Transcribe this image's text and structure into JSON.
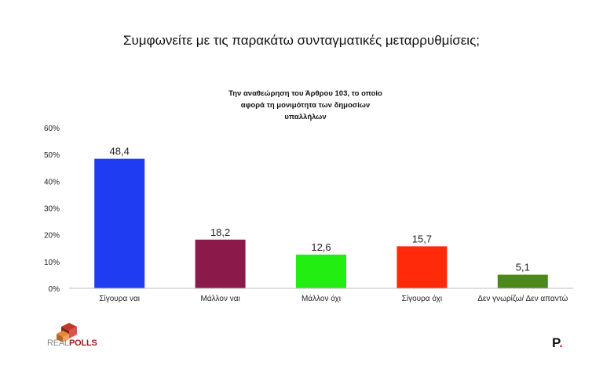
{
  "page": {
    "title": "Συμφωνείτε με τις παρακάτω συνταγματικές μεταρρυθμίσεις;"
  },
  "chart_data": {
    "type": "bar",
    "title_lines": [
      "Την αναθεώρηση του Άρθρου 103, το οποίο",
      "αφορά τη μονιμότητα των δημοσίων",
      "υπαλλήλων"
    ],
    "categories": [
      "Σίγουρα ναι",
      "Μάλλον ναι",
      "Μάλλον όχι",
      "Σίγουρα όχι",
      "Δεν γνωρίζω/ Δεν απαντώ"
    ],
    "values": [
      48.4,
      18.2,
      12.6,
      15.7,
      5.1
    ],
    "value_labels": [
      "48,4",
      "18,2",
      "12,6",
      "15,7",
      "5,1"
    ],
    "colors": [
      "#1f3cf2",
      "#8b1a4a",
      "#22ee11",
      "#ff2a0a",
      "#4b8a1a"
    ],
    "y_ticks": [
      "0%",
      "10%",
      "20%",
      "30%",
      "40%",
      "50%",
      "60%"
    ],
    "ylim": [
      0,
      60
    ],
    "grid": false,
    "legend": "none"
  },
  "logo": {
    "text_real": "REAL",
    "text_polls": "POLLS"
  },
  "brand": {
    "letter": "P",
    "dot": "."
  }
}
